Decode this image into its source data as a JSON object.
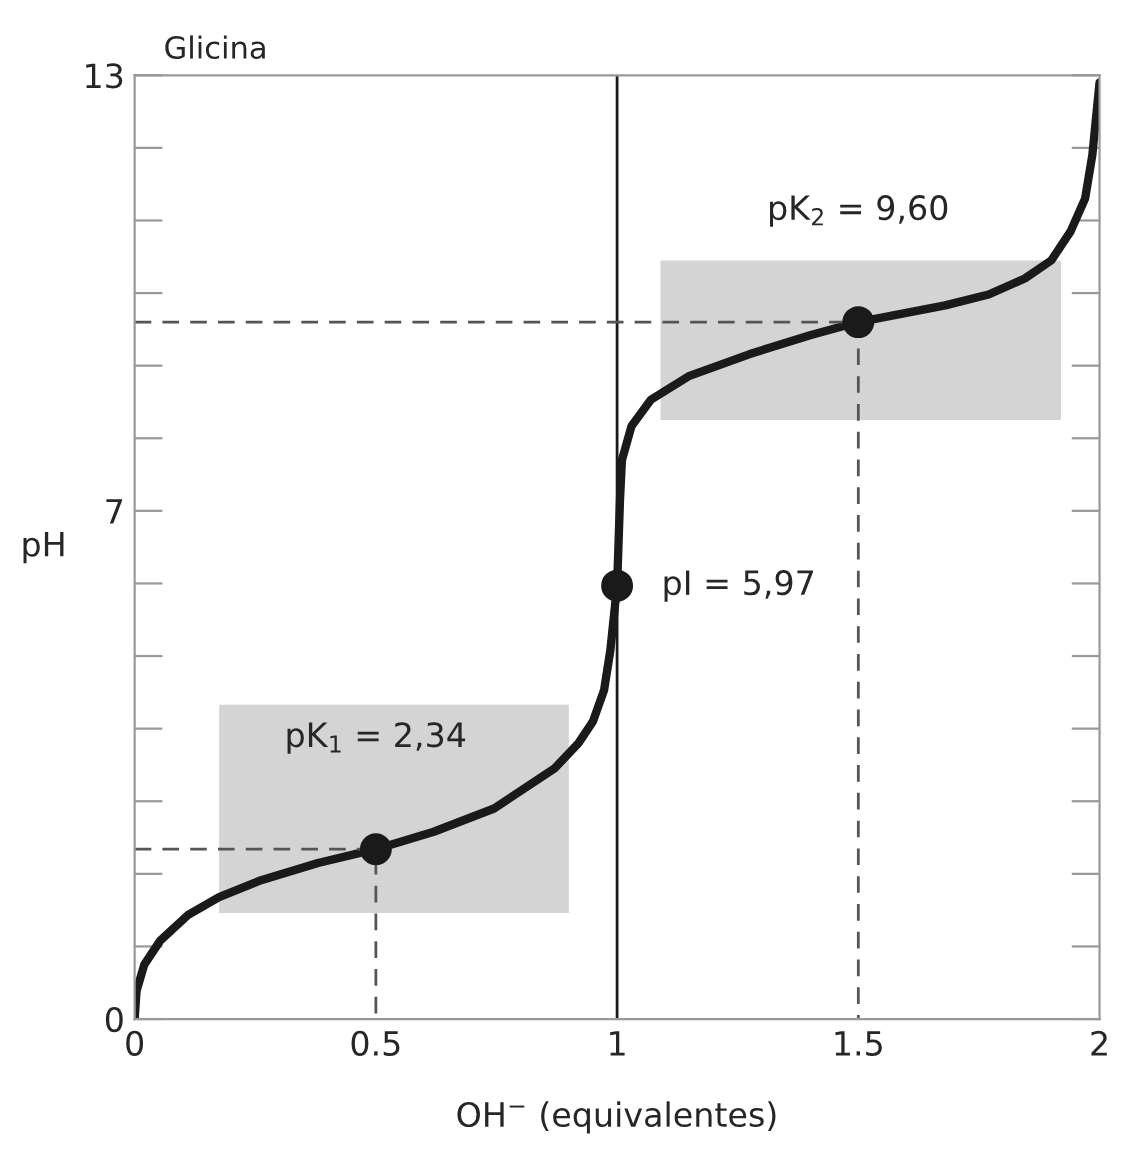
{
  "chart_data": {
    "type": "line",
    "title": "Glicina",
    "xlabel": "OH$^{−}$ (equivalentes)",
    "ylabel": "pH",
    "xlim": [
      0,
      2
    ],
    "ylim": [
      0,
      13
    ],
    "xticks": [
      0,
      0.5,
      1,
      1.5,
      2
    ],
    "yticks": [
      0,
      {
        "value": 1,
        "label": null
      },
      {
        "value": 2,
        "label": null
      },
      {
        "value": 3,
        "label": null
      },
      {
        "value": 4,
        "label": null
      },
      {
        "value": 5,
        "label": null
      },
      {
        "value": 6,
        "label": null
      },
      7,
      {
        "value": 8,
        "label": null
      },
      {
        "value": 9,
        "label": null
      },
      {
        "value": 10,
        "label": null
      },
      {
        "value": 11,
        "label": null
      },
      {
        "value": 12,
        "label": null
      },
      13
    ],
    "grid": false,
    "legend": false,
    "series": [
      {
        "color": "#1a1a1a",
        "line_style": "solid",
        "x": [
          0,
          0.004,
          0.02,
          0.053,
          0.11,
          0.175,
          0.257,
          0.38,
          0.5,
          0.62,
          0.745,
          0.87,
          0.92,
          0.95,
          0.973,
          0.986,
          1.0,
          1.006,
          1.01,
          1.03,
          1.07,
          1.15,
          1.275,
          1.4,
          1.5,
          1.68,
          1.77,
          1.845,
          1.9,
          1.94,
          1.97,
          1.985,
          2.0
        ],
        "values": [
          0,
          0.39,
          0.75,
          1.08,
          1.43,
          1.68,
          1.9,
          2.15,
          2.34,
          2.58,
          2.9,
          3.45,
          3.8,
          4.1,
          4.53,
          5.08,
          5.97,
          7.15,
          7.7,
          8.17,
          8.53,
          8.86,
          9.16,
          9.42,
          9.6,
          9.83,
          9.98,
          10.2,
          10.45,
          10.85,
          11.3,
          11.9,
          12.9
        ]
      },
      {
        "type": "line",
        "color": "#555555",
        "line_style": "dashed",
        "x": [
          0,
          0.5,
          0.5
        ],
        "values": [
          2.34,
          2.34,
          0
        ]
      },
      {
        "type": "line",
        "color": "#555555",
        "line_style": "dashed",
        "x": [
          0,
          1.5,
          1.5
        ],
        "values": [
          9.6,
          9.6,
          0
        ]
      },
      {
        "type": "scatter",
        "color": "#1a1a1a",
        "marker": "circle",
        "x": [
          0.5,
          1,
          1.5
        ],
        "values": [
          2.34,
          5.97,
          9.6
        ]
      }
    ],
    "ref_lines": [
      {
        "axis": "x",
        "value": 1,
        "label": null,
        "color": "#1a1a1a",
        "line_style": "solid"
      }
    ],
    "annotations": [
      "pK$_{1}$ = 2,34",
      "pI = 5,97",
      "pK$_{2}$ = 9,60"
    ]
  }
}
